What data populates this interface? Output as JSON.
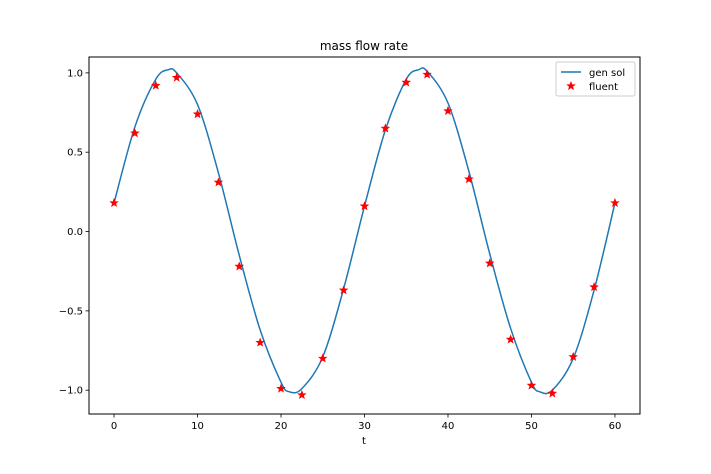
{
  "chart_data": {
    "type": "line",
    "title": "mass flow rate",
    "xlabel": "t",
    "ylabel": "",
    "xlim": [
      -3,
      63
    ],
    "ylim": [
      -1.15,
      1.1
    ],
    "xticks": [
      0,
      10,
      20,
      30,
      40,
      50,
      60
    ],
    "yticks": [
      -1.0,
      -0.5,
      0.0,
      0.5,
      1.0
    ],
    "ytick_labels": [
      "−1.0",
      "−0.5",
      "0.0",
      "0.5",
      "1.0"
    ],
    "grid": false,
    "legend_position": "top-right",
    "series": [
      {
        "name": "gen sol",
        "kind": "line",
        "color": "#1f77b4",
        "x": [
          0,
          2.5,
          5,
          6.5,
          7.5,
          10,
          12.5,
          15,
          17.5,
          20,
          21,
          22.5,
          25,
          27.5,
          30,
          32.5,
          35,
          36.5,
          37.5,
          40,
          42.5,
          45,
          47.5,
          50,
          51,
          52.5,
          55,
          57.5,
          60
        ],
        "y": [
          0.18,
          0.66,
          0.96,
          1.02,
          1.0,
          0.8,
          0.37,
          -0.15,
          -0.62,
          -0.95,
          -1.01,
          -0.99,
          -0.79,
          -0.36,
          0.16,
          0.64,
          0.96,
          1.02,
          1.01,
          0.81,
          0.38,
          -0.14,
          -0.61,
          -0.95,
          -1.01,
          -1.0,
          -0.8,
          -0.37,
          0.18
        ]
      },
      {
        "name": "fluent",
        "kind": "marker",
        "marker": "star",
        "color": "#ff0000",
        "x": [
          0,
          2.5,
          5,
          7.5,
          10,
          12.5,
          15,
          17.5,
          20,
          22.5,
          25,
          27.5,
          30,
          32.5,
          35,
          37.5,
          40,
          42.5,
          45,
          47.5,
          50,
          52.5,
          55,
          57.5,
          60
        ],
        "y": [
          0.18,
          0.62,
          0.92,
          0.97,
          0.74,
          0.31,
          -0.22,
          -0.7,
          -0.99,
          -1.03,
          -0.8,
          -0.37,
          0.16,
          0.65,
          0.94,
          0.99,
          0.76,
          0.33,
          -0.2,
          -0.68,
          -0.97,
          -1.02,
          -0.79,
          -0.35,
          0.18
        ]
      }
    ]
  }
}
